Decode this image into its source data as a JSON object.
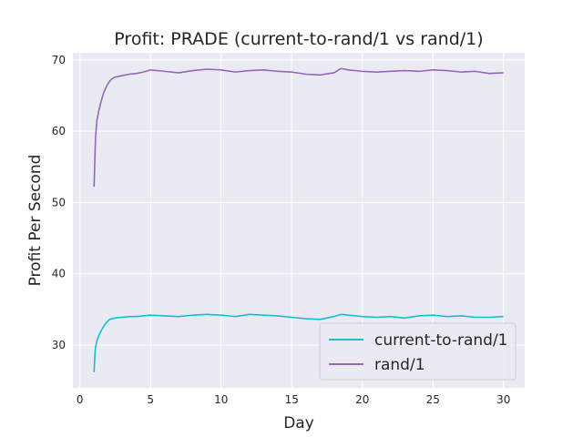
{
  "chart_data": {
    "type": "line",
    "title": "Profit: PRADE (current-to-rand/1 vs rand/1)",
    "xlabel": "Day",
    "ylabel": "Profit Per Second",
    "xlim": [
      -0.5,
      31.5
    ],
    "ylim": [
      24,
      71
    ],
    "xticks": [
      0,
      5,
      10,
      15,
      20,
      25,
      30
    ],
    "yticks": [
      30,
      40,
      50,
      60,
      70
    ],
    "grid": true,
    "legend_position": "bottom-right",
    "background": "#eaeaf2",
    "series": [
      {
        "name": "current-to-rand/1",
        "color": "#17becf",
        "x": [
          1.0,
          1.05,
          1.1,
          1.2,
          1.35,
          1.5,
          1.7,
          1.9,
          2.1,
          2.3,
          2.5,
          3,
          3.5,
          4,
          4.5,
          5,
          6,
          7,
          8,
          9,
          10,
          11,
          12,
          13,
          14,
          15,
          16,
          17,
          18,
          18.5,
          19,
          20,
          21,
          22,
          23,
          24,
          25,
          26,
          27,
          28,
          29,
          30
        ],
        "values": [
          26.2,
          28.3,
          29.6,
          30.6,
          31.4,
          32.0,
          32.7,
          33.2,
          33.6,
          33.7,
          33.8,
          33.9,
          34.0,
          34.0,
          34.1,
          34.2,
          34.1,
          34.0,
          34.2,
          34.3,
          34.2,
          34.0,
          34.3,
          34.2,
          34.1,
          33.9,
          33.7,
          33.6,
          34.0,
          34.3,
          34.2,
          34.0,
          33.9,
          34.0,
          33.8,
          34.1,
          34.2,
          34.0,
          34.1,
          33.9,
          33.9,
          34.0
        ]
      },
      {
        "name": "rand/1",
        "color": "#9467bd",
        "x": [
          1.0,
          1.05,
          1.1,
          1.2,
          1.35,
          1.5,
          1.7,
          1.9,
          2.1,
          2.3,
          2.5,
          3,
          3.5,
          4,
          4.5,
          5,
          6,
          7,
          8,
          9,
          10,
          11,
          12,
          13,
          14,
          15,
          16,
          17,
          18,
          18.5,
          19,
          20,
          21,
          22,
          23,
          24,
          25,
          26,
          27,
          28,
          29,
          30
        ],
        "values": [
          52.2,
          55.5,
          59.0,
          61.5,
          63.0,
          64.2,
          65.5,
          66.4,
          67.0,
          67.4,
          67.6,
          67.8,
          68.0,
          68.1,
          68.3,
          68.6,
          68.4,
          68.2,
          68.5,
          68.7,
          68.6,
          68.3,
          68.5,
          68.6,
          68.4,
          68.3,
          68.0,
          67.9,
          68.2,
          68.8,
          68.6,
          68.4,
          68.3,
          68.4,
          68.5,
          68.4,
          68.6,
          68.5,
          68.3,
          68.4,
          68.1,
          68.2
        ]
      }
    ]
  }
}
